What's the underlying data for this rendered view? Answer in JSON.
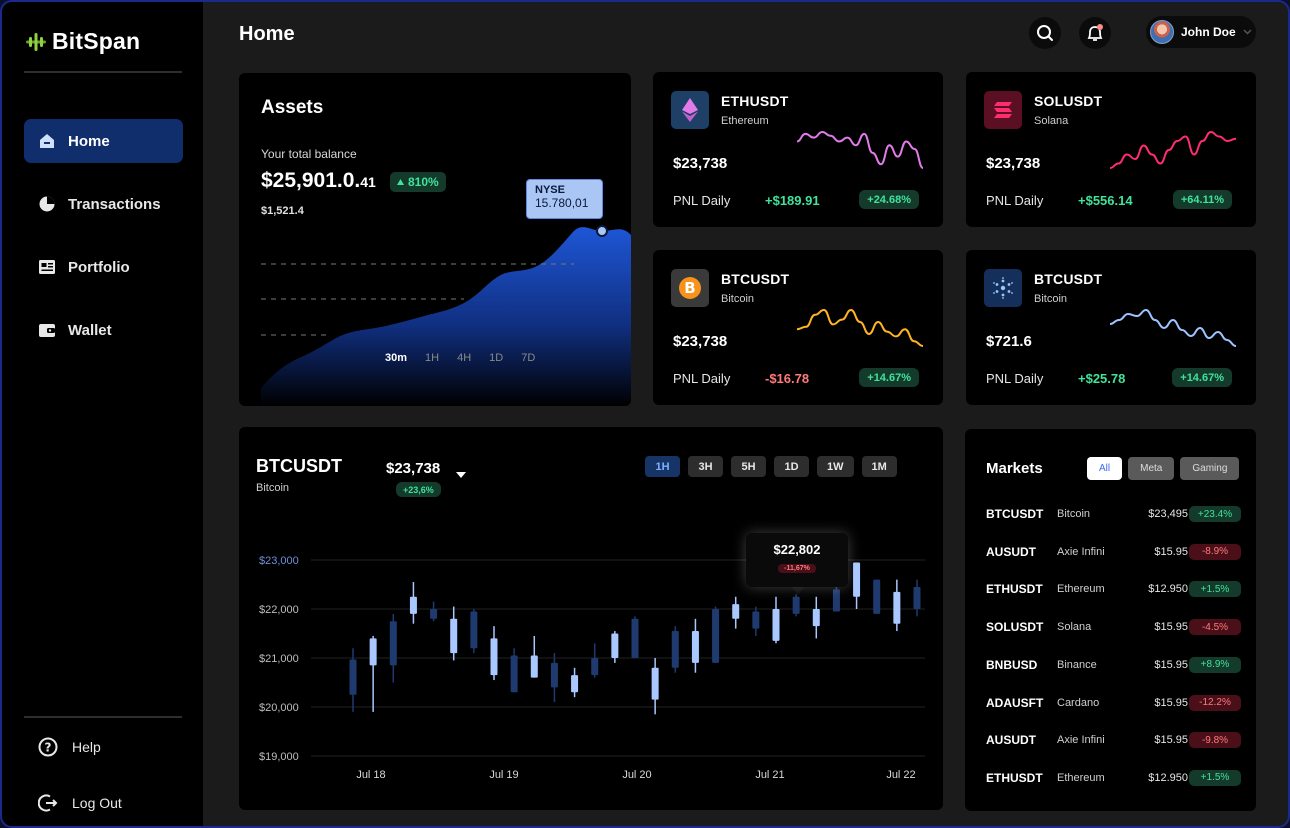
{
  "app": {
    "brand": "BitSpan",
    "brand_icon": "bitspan-logo-icon",
    "accent": "#8ed33d"
  },
  "sidebar": {
    "items": [
      {
        "label": "Home",
        "icon": "home-icon",
        "active": true
      },
      {
        "label": "Transactions",
        "icon": "pie-chart-icon",
        "active": false
      },
      {
        "label": "Portfolio",
        "icon": "portfolio-icon",
        "active": false
      },
      {
        "label": "Wallet",
        "icon": "wallet-icon",
        "active": false
      }
    ],
    "footer": [
      {
        "label": "Help",
        "icon": "help-icon"
      },
      {
        "label": "Log Out",
        "icon": "logout-icon"
      }
    ]
  },
  "header": {
    "title": "Home",
    "user_name": "John Doe",
    "search_icon": "search-icon",
    "bell_icon": "bell-icon"
  },
  "assets": {
    "title": "Assets",
    "subtitle": "Your total balance",
    "balance_main": "$25,901.0.",
    "balance_small": "41",
    "change": "810%",
    "secondary": "$1,521.4",
    "tooltip_label": "NYSE",
    "tooltip_value": "15.780,01",
    "ranges": [
      "30m",
      "1H",
      "4H",
      "1D",
      "7D"
    ],
    "active_range": "30m"
  },
  "coins": [
    {
      "symbol": "ETHUSDT",
      "name": "Ethereum",
      "price": "$23,738",
      "pnl_label": "PNL Daily",
      "pnl": "+$189.91",
      "pnl_dir": "up",
      "pct": "+24.68%",
      "icon": "ethereum-icon",
      "color": "#e07be8",
      "spark": [
        20,
        24,
        22,
        25,
        23,
        20,
        22,
        18,
        24,
        14,
        8,
        18,
        12,
        20,
        16,
        6
      ]
    },
    {
      "symbol": "SOLUSDT",
      "name": "Solana",
      "price": "$23,738",
      "pnl_label": "PNL Daily",
      "pnl": "+$556.14",
      "pnl_dir": "up",
      "pct": "+64.11%",
      "icon": "solana-icon",
      "color": "#ff2d70",
      "spark": [
        6,
        8,
        12,
        10,
        16,
        12,
        8,
        14,
        18,
        20,
        12,
        18,
        22,
        20,
        18,
        19
      ]
    },
    {
      "symbol": "BTCUSDT",
      "name": "Bitcoin",
      "price": "$23,738",
      "pnl_label": "PNL Daily",
      "pnl": "-$16.78",
      "pnl_dir": "down",
      "pct": "+14.67%",
      "icon": "bitcoin-icon",
      "color": "#ffb422",
      "spark": [
        24,
        26,
        36,
        40,
        28,
        32,
        40,
        30,
        20,
        30,
        22,
        18,
        24,
        14,
        10
      ]
    },
    {
      "symbol": "BTCUSDT",
      "name": "Bitcoin",
      "price": "$721.6",
      "pnl_label": "PNL Daily",
      "pnl": "+$25.78",
      "pnl_dir": "up",
      "pct": "+14.67%",
      "icon": "cardano-icon",
      "color": "#9ec4ff",
      "spark": [
        26,
        30,
        36,
        34,
        40,
        30,
        22,
        30,
        20,
        14,
        22,
        12,
        18,
        10,
        4
      ]
    }
  ],
  "candle": {
    "symbol": "BTCUSDT",
    "name": "Bitcoin",
    "price": "$23,738",
    "change": "+23,6%",
    "timeframes": [
      "1H",
      "3H",
      "5H",
      "1D",
      "1W",
      "1M"
    ],
    "active_tf": "1H",
    "tooltip_price": "$22,802",
    "tooltip_change": "-11,67%"
  },
  "chart_data": {
    "type": "candlestick",
    "y_ticks": [
      "$23,000",
      "$22,000",
      "$21,000",
      "$20,000",
      "$19,000"
    ],
    "ylim": [
      19000,
      23000
    ],
    "x_ticks": [
      "Jul 18",
      "Jul 19",
      "Jul 20",
      "Jul 21",
      "Jul 22"
    ],
    "colors": {
      "up": "#a9c8ff",
      "down": "#1e3a6e"
    },
    "candles": [
      {
        "o": 20250,
        "c": 20970,
        "h": 21200,
        "l": 19900,
        "dir": "down"
      },
      {
        "o": 20850,
        "c": 21400,
        "h": 21450,
        "l": 19900,
        "dir": "up"
      },
      {
        "o": 20850,
        "c": 21750,
        "h": 21900,
        "l": 20500,
        "dir": "down"
      },
      {
        "o": 21900,
        "c": 22250,
        "h": 22550,
        "l": 21700,
        "dir": "up"
      },
      {
        "o": 21800,
        "c": 22000,
        "h": 22150,
        "l": 21750,
        "dir": "down"
      },
      {
        "o": 21100,
        "c": 21800,
        "h": 22050,
        "l": 20950,
        "dir": "up"
      },
      {
        "o": 21200,
        "c": 21950,
        "h": 22000,
        "l": 21100,
        "dir": "down"
      },
      {
        "o": 20650,
        "c": 21400,
        "h": 21650,
        "l": 20550,
        "dir": "up"
      },
      {
        "o": 20300,
        "c": 21050,
        "h": 21200,
        "l": 20300,
        "dir": "down"
      },
      {
        "o": 20600,
        "c": 21050,
        "h": 21450,
        "l": 20600,
        "dir": "up"
      },
      {
        "o": 20400,
        "c": 20900,
        "h": 21100,
        "l": 20100,
        "dir": "down"
      },
      {
        "o": 20300,
        "c": 20650,
        "h": 20800,
        "l": 20200,
        "dir": "up"
      },
      {
        "o": 20650,
        "c": 21000,
        "h": 21300,
        "l": 20600,
        "dir": "down"
      },
      {
        "o": 21000,
        "c": 21500,
        "h": 21550,
        "l": 20900,
        "dir": "up"
      },
      {
        "o": 21000,
        "c": 21800,
        "h": 21850,
        "l": 21000,
        "dir": "down"
      },
      {
        "o": 20150,
        "c": 20800,
        "h": 21000,
        "l": 19850,
        "dir": "up"
      },
      {
        "o": 20800,
        "c": 21550,
        "h": 21650,
        "l": 20700,
        "dir": "down"
      },
      {
        "o": 20900,
        "c": 21550,
        "h": 21800,
        "l": 20700,
        "dir": "up"
      },
      {
        "o": 20900,
        "c": 22000,
        "h": 22050,
        "l": 20900,
        "dir": "down"
      },
      {
        "o": 21800,
        "c": 22100,
        "h": 22250,
        "l": 21600,
        "dir": "up"
      },
      {
        "o": 21600,
        "c": 21950,
        "h": 22050,
        "l": 21450,
        "dir": "down"
      },
      {
        "o": 21350,
        "c": 22000,
        "h": 22250,
        "l": 21300,
        "dir": "up"
      },
      {
        "o": 21900,
        "c": 22250,
        "h": 22300,
        "l": 21850,
        "dir": "down"
      },
      {
        "o": 21650,
        "c": 22000,
        "h": 22250,
        "l": 21400,
        "dir": "up"
      },
      {
        "o": 21950,
        "c": 22400,
        "h": 22500,
        "l": 21950,
        "dir": "down"
      },
      {
        "o": 22250,
        "c": 22950,
        "h": 22950,
        "l": 22000,
        "dir": "up"
      },
      {
        "o": 21900,
        "c": 22600,
        "h": 22600,
        "l": 21900,
        "dir": "down"
      },
      {
        "o": 21700,
        "c": 22350,
        "h": 22600,
        "l": 21550,
        "dir": "up"
      },
      {
        "o": 22000,
        "c": 22450,
        "h": 22600,
        "l": 21850,
        "dir": "down"
      }
    ]
  },
  "markets": {
    "title": "Markets",
    "filters": [
      "All",
      "Meta",
      "Gaming"
    ],
    "active_filter": "All",
    "rows": [
      {
        "symbol": "BTCUSDT",
        "name": "Bitcoin",
        "price": "$23,495",
        "change": "+23.4%",
        "dir": "up"
      },
      {
        "symbol": "AUSUDT",
        "name": "Axie Infini",
        "price": "$15.95",
        "change": "-8.9%",
        "dir": "down"
      },
      {
        "symbol": "ETHUSDT",
        "name": "Ethereum",
        "price": "$12.950",
        "change": "+1.5%",
        "dir": "up"
      },
      {
        "symbol": "SOLUSDT",
        "name": "Solana",
        "price": "$15.95",
        "change": "-4.5%",
        "dir": "down"
      },
      {
        "symbol": "BNBUSD",
        "name": "Binance",
        "price": "$15.95",
        "change": "+8.9%",
        "dir": "up"
      },
      {
        "symbol": "ADAUSFT",
        "name": "Cardano",
        "price": "$15.95",
        "change": "-12.2%",
        "dir": "down"
      },
      {
        "symbol": "AUSUDT",
        "name": "Axie Infini",
        "price": "$15.95",
        "change": "-9.8%",
        "dir": "down"
      },
      {
        "symbol": "ETHUSDT",
        "name": "Ethereum",
        "price": "$12.950",
        "change": "+1.5%",
        "dir": "up"
      }
    ]
  }
}
